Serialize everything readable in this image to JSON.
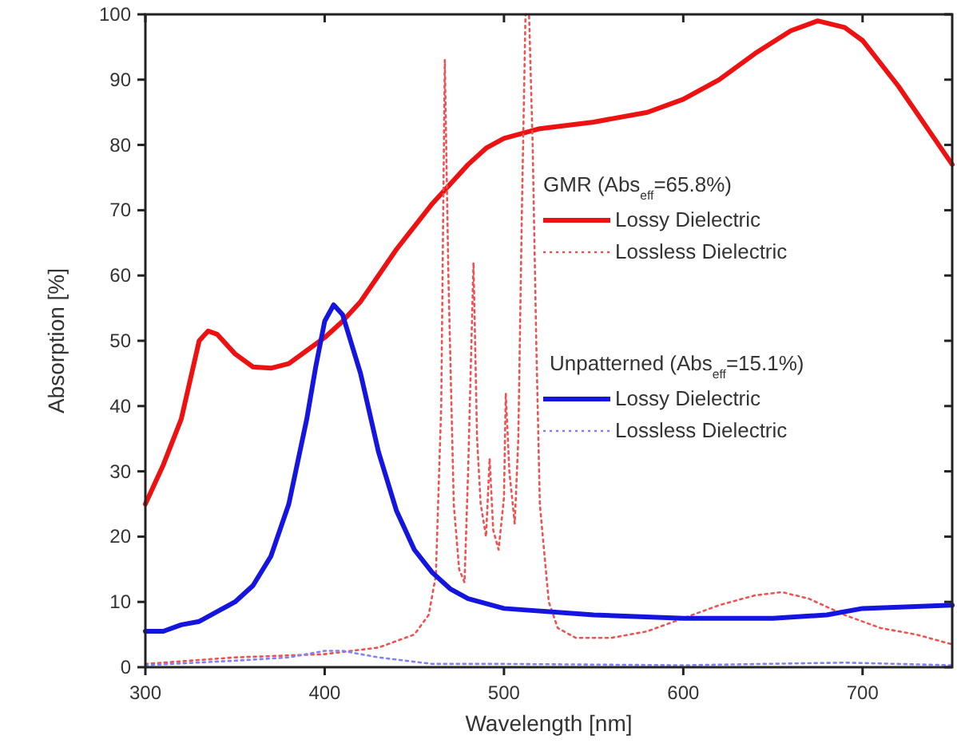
{
  "chart_data": {
    "type": "line",
    "xlabel": "Wavelength [nm]",
    "ylabel": "Absorption [%]",
    "xlim": [
      300,
      750
    ],
    "xticks": [
      300,
      400,
      500,
      600,
      700
    ],
    "ylim": [
      0,
      100
    ],
    "yticks": [
      0,
      10,
      20,
      30,
      40,
      50,
      60,
      70,
      80,
      90,
      100
    ],
    "grid": false,
    "legend": "right",
    "marker": "none",
    "annotations": [
      "GMR (Abs$_{eff}$=65.8%)",
      "Unpatterned (Abs$_{eff}$=15.1%)"
    ],
    "series": [
      {
        "name": "Lossy Dielectric",
        "color": "#ee1111",
        "line_style": "solid",
        "x": [
          300,
          310,
          320,
          325,
          330,
          335,
          340,
          350,
          360,
          370,
          380,
          390,
          400,
          410,
          420,
          430,
          440,
          450,
          460,
          470,
          480,
          490,
          500,
          520,
          550,
          580,
          600,
          620,
          640,
          660,
          675,
          690,
          700,
          720,
          740,
          750
        ],
        "values": [
          25,
          31,
          38,
          44,
          50,
          51.5,
          51,
          48,
          46,
          45.8,
          46.5,
          48.5,
          50.5,
          53,
          56,
          60,
          64,
          67.5,
          71,
          74,
          77,
          79.5,
          81,
          82.5,
          83.5,
          85,
          87,
          90,
          94,
          97.5,
          99,
          98,
          96,
          89,
          81,
          77
        ]
      },
      {
        "name": "Lossless Dielectric",
        "color": "#f05050",
        "line_style": "dotted",
        "x": [
          300,
          350,
          400,
          430,
          450,
          458,
          462,
          465,
          467,
          469,
          472,
          475,
          478,
          480,
          483,
          485,
          487,
          490,
          492,
          494,
          497,
          500,
          501,
          503,
          506,
          508,
          510,
          512,
          514,
          516,
          518,
          520,
          525,
          530,
          540,
          560,
          580,
          600,
          620,
          640,
          655,
          670,
          690,
          710,
          730,
          750
        ],
        "values": [
          0.5,
          1.5,
          2,
          3,
          5,
          8,
          14,
          40,
          93,
          60,
          25,
          15,
          13,
          30,
          62,
          35,
          25,
          20,
          32,
          21,
          18,
          26,
          42,
          30,
          22,
          35,
          70,
          100,
          100,
          80,
          50,
          25,
          10,
          6,
          4.5,
          4.5,
          5.5,
          7.5,
          9.5,
          11,
          11.5,
          10.5,
          8,
          6,
          5,
          3.5
        ]
      },
      {
        "name": "Lossy Dielectric",
        "color": "#1515e0",
        "line_style": "solid",
        "x": [
          300,
          310,
          320,
          330,
          340,
          350,
          360,
          370,
          380,
          390,
          395,
          400,
          405,
          410,
          420,
          430,
          440,
          450,
          460,
          470,
          480,
          500,
          550,
          600,
          650,
          680,
          700,
          750
        ],
        "values": [
          5.5,
          5.5,
          6.5,
          7,
          8.5,
          10,
          12.5,
          17,
          25,
          38,
          46,
          53,
          55.5,
          54,
          45,
          33,
          24,
          18,
          14.5,
          12,
          10.5,
          9,
          8,
          7.5,
          7.5,
          8,
          9,
          9.5
        ]
      },
      {
        "name": "Lossless Dielectric",
        "color": "#8080ff",
        "line_style": "dotted",
        "x": [
          300,
          350,
          380,
          400,
          410,
          430,
          460,
          500,
          600,
          690,
          750
        ],
        "values": [
          0.3,
          1,
          1.5,
          2.5,
          2.5,
          1.5,
          0.5,
          0.5,
          0.3,
          0.7,
          0.3
        ]
      }
    ]
  }
}
